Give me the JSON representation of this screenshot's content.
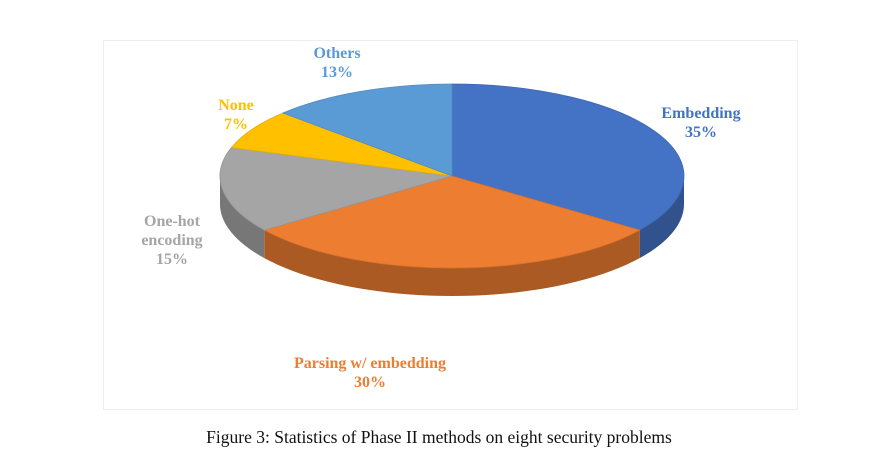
{
  "figure": {
    "caption": "Figure 3: Statistics of Phase II methods on eight security problems"
  },
  "chart_data": {
    "type": "pie",
    "style": "3d",
    "title": "",
    "slices": [
      {
        "name": "Embedding",
        "value": 35,
        "value_label": "35%",
        "label_lines": [
          "Embedding"
        ],
        "color": "#4472C4"
      },
      {
        "name": "Parsing w/ embedding",
        "value": 30,
        "value_label": "30%",
        "label_lines": [
          "Parsing w/ embedding"
        ],
        "color": "#ED7D31"
      },
      {
        "name": "One-hot encoding",
        "value": 15,
        "value_label": "15%",
        "label_lines": [
          "One-hot",
          "encoding"
        ],
        "color": "#A5A5A5"
      },
      {
        "name": "None",
        "value": 7,
        "value_label": "7%",
        "label_lines": [
          "None"
        ],
        "color": "#FFC000"
      },
      {
        "name": "Others",
        "value": 13,
        "value_label": "13%",
        "label_lines": [
          "Others"
        ],
        "color": "#5B9BD5"
      }
    ]
  }
}
